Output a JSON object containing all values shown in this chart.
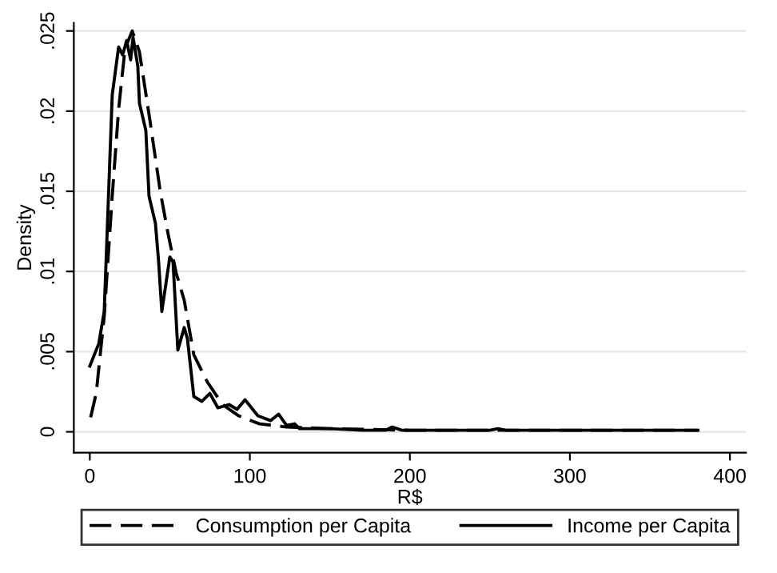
{
  "chart_data": {
    "type": "line",
    "xlabel": "R$",
    "ylabel": "Density",
    "xlim": [
      -10,
      410
    ],
    "ylim": [
      -0.0013,
      0.0255
    ],
    "xticks": [
      0,
      100,
      200,
      300,
      400
    ],
    "yticks": [
      0,
      {
        "value": 0.005,
        "label": ".005"
      },
      {
        "value": 0.01,
        "label": ".01"
      },
      {
        "value": 0.015,
        "label": ".015"
      },
      {
        "value": 0.02,
        "label": ".02"
      },
      {
        "value": 0.025,
        "label": ".025"
      }
    ],
    "grid": "y",
    "legend": "bottom",
    "series": [
      {
        "name": "Consumption per Capita",
        "color": "#000000",
        "line_style": "dashed",
        "x": [
          0.5,
          4,
          9,
          14,
          18,
          22,
          26.5,
          31,
          37,
          44,
          49,
          54,
          59,
          65,
          73.5,
          83,
          93,
          106,
          123,
          150,
          200,
          300,
          380
        ],
        "values": [
          0.0009,
          0.0024,
          0.0072,
          0.0147,
          0.0201,
          0.0239,
          0.025,
          0.0237,
          0.0198,
          0.015,
          0.0123,
          0.0099,
          0.0082,
          0.0048,
          0.0031,
          0.0017,
          0.001,
          0.0005,
          0.0003,
          0.0002,
          0.0001,
          0.0001,
          0.0001
        ]
      },
      {
        "name": "Income per Capita",
        "color": "#000000",
        "line_style": "solid",
        "x": [
          0,
          5.6,
          9,
          14,
          18,
          20.5,
          23,
          25.5,
          27,
          30,
          31,
          35,
          37,
          41,
          43,
          45,
          50,
          52,
          55,
          59,
          61,
          65,
          70,
          75,
          80,
          87,
          92,
          97,
          105,
          113,
          118,
          123,
          128,
          131,
          150,
          170,
          185,
          189,
          195,
          250,
          255,
          260,
          300,
          380
        ],
        "values": [
          0.0041,
          0.0055,
          0.0075,
          0.021,
          0.024,
          0.0235,
          0.0244,
          0.0232,
          0.0246,
          0.0228,
          0.0205,
          0.0188,
          0.0147,
          0.013,
          0.0106,
          0.0075,
          0.0109,
          0.0106,
          0.0051,
          0.0065,
          0.0058,
          0.0022,
          0.0019,
          0.0024,
          0.0015,
          0.0017,
          0.0014,
          0.002,
          0.001,
          0.0007,
          0.0011,
          0.0004,
          0.0005,
          0.0002,
          0.0002,
          0.0001,
          0.0001,
          0.0003,
          0.0001,
          0.0001,
          0.0002,
          0.0001,
          0.0001,
          0.0001
        ]
      }
    ]
  }
}
